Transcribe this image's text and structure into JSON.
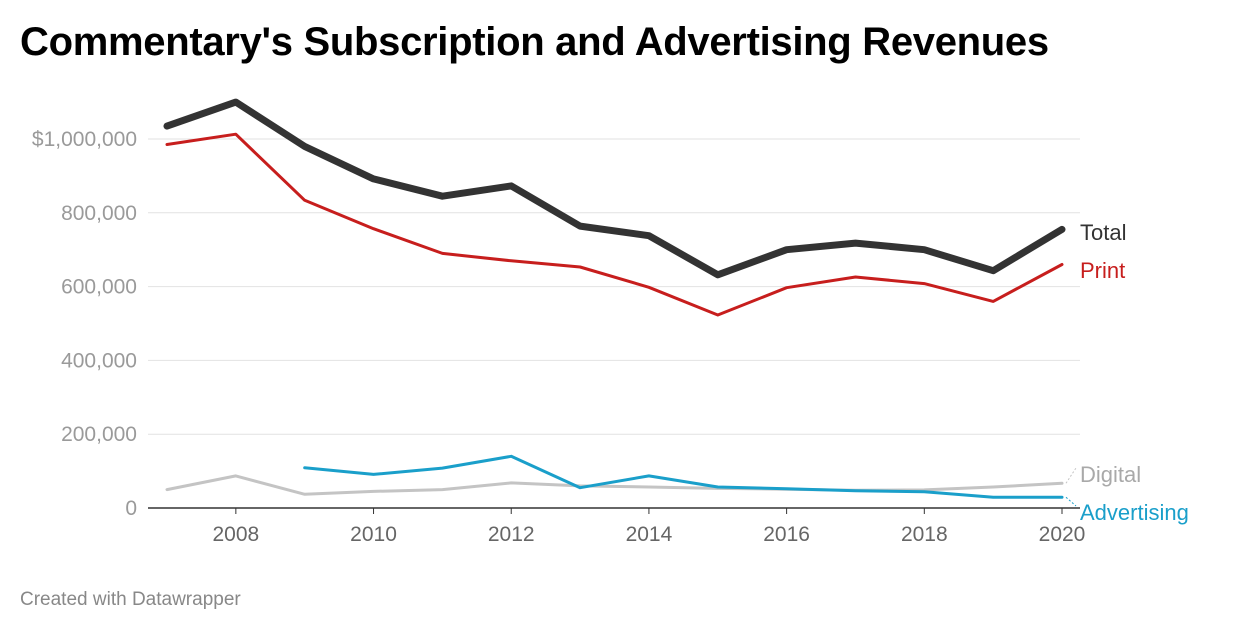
{
  "page": {
    "title": "Commentary's Subscription and Advertising Revenues",
    "footer": "Created with Datawrapper"
  },
  "chart_data": {
    "type": "line",
    "title": "Commentary's Subscription and Advertising Revenues",
    "xlabel": "",
    "ylabel": "",
    "xlim": [
      2007,
      2020
    ],
    "ylim": [
      0,
      1000000
    ],
    "grid": true,
    "legend": "inline labels at right end of lines",
    "x_ticks": [
      {
        "value": 2008,
        "label": "2008"
      },
      {
        "value": 2010,
        "label": "2010"
      },
      {
        "value": 2012,
        "label": "2012"
      },
      {
        "value": 2014,
        "label": "2014"
      },
      {
        "value": 2016,
        "label": "2016"
      },
      {
        "value": 2018,
        "label": "2018"
      },
      {
        "value": 2020,
        "label": "2020"
      }
    ],
    "y_ticks": [
      {
        "value": 0,
        "label": "0"
      },
      {
        "value": 200000,
        "label": "200,000"
      },
      {
        "value": 400000,
        "label": "400,000"
      },
      {
        "value": 600000,
        "label": "600,000"
      },
      {
        "value": 800000,
        "label": "800,000"
      },
      {
        "value": 1000000,
        "label": "$1,000,000"
      }
    ],
    "series": [
      {
        "name": "Digital",
        "color": "#c4c4c4",
        "x": [
          2007,
          2008,
          2009,
          2010,
          2011,
          2012,
          2013,
          2014,
          2015,
          2016,
          2017,
          2018,
          2019,
          2020
        ],
        "values": [
          50000,
          87000,
          37000,
          45000,
          50000,
          68000,
          60000,
          57000,
          53000,
          51000,
          48000,
          49000,
          57000,
          67000
        ]
      },
      {
        "name": "Advertising",
        "color": "#1a9fca",
        "x": [
          2009,
          2010,
          2011,
          2012,
          2013,
          2014,
          2015,
          2016,
          2017,
          2018,
          2019,
          2020
        ],
        "values": [
          109000,
          91000,
          108000,
          140000,
          55000,
          87000,
          57000,
          52000,
          47000,
          44000,
          29000,
          29000
        ]
      },
      {
        "name": "Print",
        "color": "#c71e1d",
        "x": [
          2007,
          2008,
          2009,
          2010,
          2011,
          2012,
          2013,
          2014,
          2015,
          2016,
          2017,
          2018,
          2019,
          2020
        ],
        "values": [
          985000,
          1013000,
          834000,
          757000,
          690000,
          670000,
          653000,
          598000,
          523000,
          597000,
          626000,
          608000,
          560000,
          660000
        ]
      },
      {
        "name": "Total",
        "color": "#333333",
        "x": [
          2007,
          2008,
          2009,
          2010,
          2011,
          2012,
          2013,
          2014,
          2015,
          2016,
          2017,
          2018,
          2019,
          2020
        ],
        "values": [
          1035000,
          1100000,
          980000,
          892000,
          845000,
          873000,
          764000,
          738000,
          632000,
          700000,
          718000,
          700000,
          643000,
          755000
        ]
      }
    ]
  }
}
